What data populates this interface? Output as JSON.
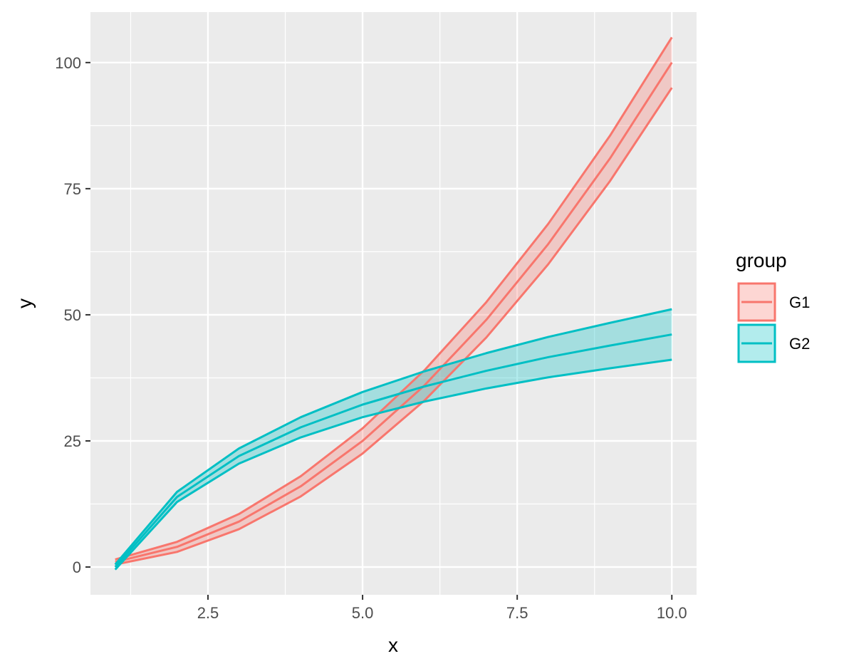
{
  "chart_data": {
    "type": "line",
    "xlabel": "x",
    "ylabel": "y",
    "xlim": [
      0.6,
      10.4
    ],
    "ylim": [
      -5.5,
      110
    ],
    "x_ticks": [
      2.5,
      5.0,
      7.5,
      10.0
    ],
    "x_tick_labels": [
      "2.5",
      "5.0",
      "7.5",
      "10.0"
    ],
    "y_ticks": [
      0,
      25,
      50,
      75,
      100
    ],
    "y_tick_labels": [
      "0",
      "25",
      "50",
      "75",
      "100"
    ],
    "grid": true,
    "legend": {
      "title": "group",
      "position": "right"
    },
    "x": [
      1,
      2,
      3,
      4,
      5,
      6,
      7,
      8,
      9,
      10
    ],
    "series": [
      {
        "name": "G1",
        "color": "#F8766D",
        "y": [
          1,
          4,
          9,
          16,
          25,
          36,
          49,
          64,
          81,
          100
        ],
        "lower": [
          0.5,
          3,
          7.5,
          14,
          22.5,
          33,
          45.5,
          60,
          76.5,
          95
        ],
        "upper": [
          1.5,
          5,
          10.5,
          18,
          27.5,
          39,
          52.5,
          68,
          85.5,
          105
        ]
      },
      {
        "name": "G2",
        "color": "#00BFC4",
        "y": [
          0,
          13.9,
          22,
          27.7,
          32.2,
          35.8,
          38.9,
          41.6,
          43.9,
          46.1
        ],
        "lower": [
          -0.5,
          12.9,
          20.5,
          25.7,
          29.7,
          32.8,
          35.4,
          37.6,
          39.4,
          41.1
        ],
        "upper": [
          0.5,
          14.9,
          23.5,
          29.7,
          34.7,
          38.8,
          42.4,
          45.6,
          48.4,
          51.1
        ]
      }
    ]
  }
}
